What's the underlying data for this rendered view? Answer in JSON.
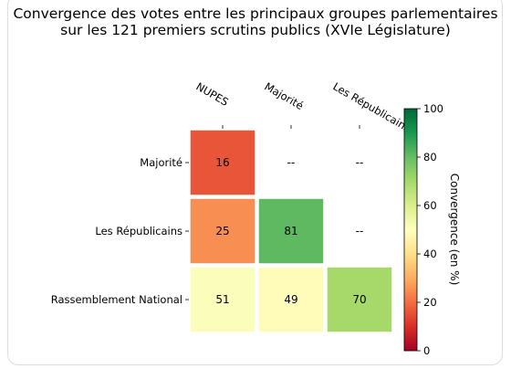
{
  "chart_data": {
    "type": "heatmap",
    "title_line1": "Convergence des votes entre les principaux groupes parlementaires",
    "title_line2": "sur les 121 premiers scrutins publics (XVIe Législature)",
    "x_categories": [
      "NUPES",
      "Majorité",
      "Les Républicains"
    ],
    "y_categories": [
      "Majorité",
      "Les Républicains",
      "Rassemblement National"
    ],
    "values": [
      [
        16,
        null,
        null
      ],
      [
        25,
        81,
        null
      ],
      [
        51,
        49,
        70
      ]
    ],
    "empty_label": "--",
    "colorbar": {
      "label": "Convergence (en %)",
      "range": [
        0,
        100
      ],
      "ticks": [
        0,
        20,
        40,
        60,
        80,
        100
      ],
      "colormap": "RdYlGn"
    }
  }
}
